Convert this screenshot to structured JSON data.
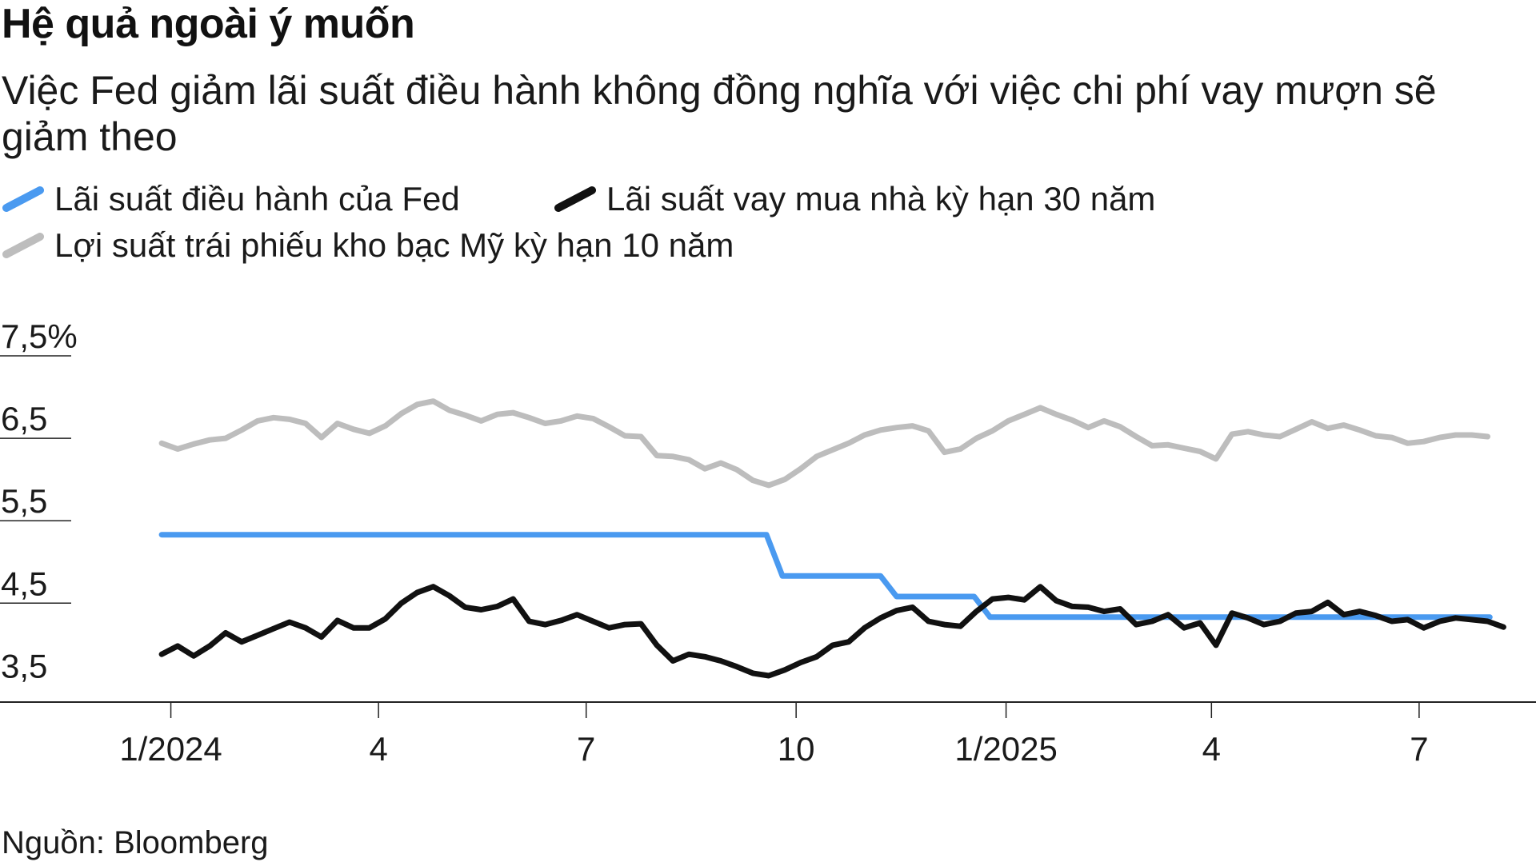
{
  "title": "Hệ quả ngoài ý muốn",
  "subtitle": "Việc Fed giảm lãi suất điều hành không đồng nghĩa với việc chi phí vay mượn sẽ giảm theo",
  "source": "Nguồn: Bloomberg",
  "legend": [
    {
      "label": "Lãi suất điều hành của Fed",
      "color": "#4a9af0"
    },
    {
      "label": "Lãi suất vay mua nhà kỳ hạn 30 năm",
      "color": "#111111"
    },
    {
      "label": "Lợi suất trái phiếu kho bạc Mỹ kỳ hạn 10 năm",
      "color": "#bdbdbd"
    }
  ],
  "chart_data": {
    "type": "line",
    "xlabel": "",
    "ylabel": "",
    "ylim": [
      3.3,
      7.5
    ],
    "xlim": [
      "2023-12-29",
      "2025-08-10"
    ],
    "grid": false,
    "legend_position": "top-left",
    "y_ticks": [
      {
        "value": 7.5,
        "label": "7,5%"
      },
      {
        "value": 6.5,
        "label": "6,5"
      },
      {
        "value": 5.5,
        "label": "5,5"
      },
      {
        "value": 4.5,
        "label": "4,5"
      },
      {
        "value": 3.5,
        "label": "3,5"
      }
    ],
    "x_ticks": [
      {
        "value": "2024-01-01",
        "label": "1/2024"
      },
      {
        "value": "2024-04-01",
        "label": "4"
      },
      {
        "value": "2024-07-01",
        "label": "7"
      },
      {
        "value": "2024-10-01",
        "label": "10"
      },
      {
        "value": "2025-01-01",
        "label": "1/2025"
      },
      {
        "value": "2025-04-01",
        "label": "4"
      },
      {
        "value": "2025-07-01",
        "label": "7"
      }
    ],
    "series": [
      {
        "name": "Lãi suất điều hành của Fed",
        "color": "#4a9af0",
        "points": [
          [
            "2023-12-28",
            5.33
          ],
          [
            "2024-09-18",
            5.33
          ],
          [
            "2024-09-25",
            4.83
          ],
          [
            "2024-11-07",
            4.83
          ],
          [
            "2024-11-14",
            4.58
          ],
          [
            "2024-12-18",
            4.58
          ],
          [
            "2024-12-25",
            4.33
          ],
          [
            "2025-08-01",
            4.33
          ]
        ]
      },
      {
        "name": "Lãi suất vay mua nhà kỳ hạn 30 năm",
        "color": "#111111",
        "points": [
          [
            "2023-12-28",
            3.88
          ],
          [
            "2024-01-04",
            3.98
          ],
          [
            "2024-01-11",
            3.86
          ],
          [
            "2024-01-18",
            3.98
          ],
          [
            "2024-01-25",
            4.14
          ],
          [
            "2024-02-01",
            4.03
          ],
          [
            "2024-02-08",
            4.11
          ],
          [
            "2024-02-15",
            4.19
          ],
          [
            "2024-02-22",
            4.27
          ],
          [
            "2024-02-29",
            4.2
          ],
          [
            "2024-03-07",
            4.09
          ],
          [
            "2024-03-14",
            4.29
          ],
          [
            "2024-03-21",
            4.2
          ],
          [
            "2024-03-28",
            4.2
          ],
          [
            "2024-04-04",
            4.31
          ],
          [
            "2024-04-11",
            4.5
          ],
          [
            "2024-04-18",
            4.63
          ],
          [
            "2024-04-25",
            4.7
          ],
          [
            "2024-05-02",
            4.59
          ],
          [
            "2024-05-09",
            4.45
          ],
          [
            "2024-05-16",
            4.42
          ],
          [
            "2024-05-23",
            4.46
          ],
          [
            "2024-05-30",
            4.55
          ],
          [
            "2024-06-06",
            4.28
          ],
          [
            "2024-06-13",
            4.24
          ],
          [
            "2024-06-20",
            4.29
          ],
          [
            "2024-06-27",
            4.36
          ],
          [
            "2024-07-04",
            4.28
          ],
          [
            "2024-07-11",
            4.2
          ],
          [
            "2024-07-18",
            4.24
          ],
          [
            "2024-07-25",
            4.25
          ],
          [
            "2024-08-01",
            3.99
          ],
          [
            "2024-08-08",
            3.8
          ],
          [
            "2024-08-15",
            3.88
          ],
          [
            "2024-08-22",
            3.85
          ],
          [
            "2024-08-29",
            3.8
          ],
          [
            "2024-09-05",
            3.73
          ],
          [
            "2024-09-12",
            3.65
          ],
          [
            "2024-09-19",
            3.62
          ],
          [
            "2024-09-26",
            3.69
          ],
          [
            "2024-10-03",
            3.78
          ],
          [
            "2024-10-10",
            3.85
          ],
          [
            "2024-10-17",
            3.99
          ],
          [
            "2024-10-24",
            4.03
          ],
          [
            "2024-10-31",
            4.2
          ],
          [
            "2024-11-07",
            4.32
          ],
          [
            "2024-11-14",
            4.41
          ],
          [
            "2024-11-21",
            4.45
          ],
          [
            "2024-11-28",
            4.28
          ],
          [
            "2024-12-05",
            4.24
          ],
          [
            "2024-12-12",
            4.22
          ],
          [
            "2024-12-19",
            4.4
          ],
          [
            "2024-12-26",
            4.55
          ],
          [
            "2025-01-02",
            4.57
          ],
          [
            "2025-01-09",
            4.54
          ],
          [
            "2025-01-16",
            4.7
          ],
          [
            "2025-01-23",
            4.53
          ],
          [
            "2025-01-30",
            4.46
          ],
          [
            "2025-02-06",
            4.45
          ],
          [
            "2025-02-13",
            4.4
          ],
          [
            "2025-02-20",
            4.43
          ],
          [
            "2025-02-27",
            4.24
          ],
          [
            "2025-03-06",
            4.28
          ],
          [
            "2025-03-13",
            4.36
          ],
          [
            "2025-03-20",
            4.2
          ],
          [
            "2025-03-27",
            4.26
          ],
          [
            "2025-04-03",
            3.99
          ],
          [
            "2025-04-10",
            4.38
          ],
          [
            "2025-04-17",
            4.32
          ],
          [
            "2025-04-24",
            4.24
          ],
          [
            "2025-05-01",
            4.28
          ],
          [
            "2025-05-08",
            4.38
          ],
          [
            "2025-05-15",
            4.4
          ],
          [
            "2025-05-22",
            4.51
          ],
          [
            "2025-05-29",
            4.36
          ],
          [
            "2025-06-05",
            4.4
          ],
          [
            "2025-06-12",
            4.35
          ],
          [
            "2025-06-19",
            4.28
          ],
          [
            "2025-06-26",
            4.3
          ],
          [
            "2025-07-03",
            4.2
          ],
          [
            "2025-07-10",
            4.28
          ],
          [
            "2025-07-17",
            4.32
          ],
          [
            "2025-07-24",
            4.3
          ],
          [
            "2025-07-31",
            4.28
          ],
          [
            "2025-08-07",
            4.21
          ]
        ]
      },
      {
        "name": "Lợi suất trái phiếu kho bạc Mỹ kỳ hạn 10 năm",
        "color": "#bdbdbd",
        "points": [
          [
            "2023-12-28",
            6.44
          ],
          [
            "2024-01-04",
            6.37
          ],
          [
            "2024-01-11",
            6.43
          ],
          [
            "2024-01-18",
            6.48
          ],
          [
            "2024-01-25",
            6.5
          ],
          [
            "2024-02-01",
            6.6
          ],
          [
            "2024-02-08",
            6.71
          ],
          [
            "2024-02-15",
            6.75
          ],
          [
            "2024-02-22",
            6.73
          ],
          [
            "2024-02-29",
            6.68
          ],
          [
            "2024-03-07",
            6.51
          ],
          [
            "2024-03-14",
            6.68
          ],
          [
            "2024-03-21",
            6.61
          ],
          [
            "2024-03-28",
            6.56
          ],
          [
            "2024-04-04",
            6.65
          ],
          [
            "2024-04-11",
            6.8
          ],
          [
            "2024-04-18",
            6.91
          ],
          [
            "2024-04-25",
            6.95
          ],
          [
            "2024-05-02",
            6.84
          ],
          [
            "2024-05-09",
            6.78
          ],
          [
            "2024-05-16",
            6.71
          ],
          [
            "2024-05-23",
            6.79
          ],
          [
            "2024-05-30",
            6.81
          ],
          [
            "2024-06-06",
            6.75
          ],
          [
            "2024-06-13",
            6.68
          ],
          [
            "2024-06-20",
            6.71
          ],
          [
            "2024-06-27",
            6.77
          ],
          [
            "2024-07-04",
            6.74
          ],
          [
            "2024-07-11",
            6.64
          ],
          [
            "2024-07-18",
            6.53
          ],
          [
            "2024-07-25",
            6.52
          ],
          [
            "2024-08-01",
            6.29
          ],
          [
            "2024-08-08",
            6.28
          ],
          [
            "2024-08-15",
            6.24
          ],
          [
            "2024-08-22",
            6.13
          ],
          [
            "2024-08-29",
            6.2
          ],
          [
            "2024-09-05",
            6.12
          ],
          [
            "2024-09-12",
            5.99
          ],
          [
            "2024-09-19",
            5.93
          ],
          [
            "2024-09-26",
            6.0
          ],
          [
            "2024-10-03",
            6.13
          ],
          [
            "2024-10-10",
            6.28
          ],
          [
            "2024-10-17",
            6.36
          ],
          [
            "2024-10-24",
            6.44
          ],
          [
            "2024-10-31",
            6.54
          ],
          [
            "2024-11-07",
            6.6
          ],
          [
            "2024-11-14",
            6.63
          ],
          [
            "2024-11-21",
            6.65
          ],
          [
            "2024-11-28",
            6.59
          ],
          [
            "2024-12-05",
            6.33
          ],
          [
            "2024-12-12",
            6.37
          ],
          [
            "2024-12-19",
            6.5
          ],
          [
            "2024-12-26",
            6.59
          ],
          [
            "2025-01-02",
            6.71
          ],
          [
            "2025-01-09",
            6.79
          ],
          [
            "2025-01-16",
            6.87
          ],
          [
            "2025-01-23",
            6.79
          ],
          [
            "2025-01-30",
            6.72
          ],
          [
            "2025-02-06",
            6.63
          ],
          [
            "2025-02-13",
            6.71
          ],
          [
            "2025-02-20",
            6.64
          ],
          [
            "2025-02-27",
            6.52
          ],
          [
            "2025-03-06",
            6.41
          ],
          [
            "2025-03-13",
            6.42
          ],
          [
            "2025-03-20",
            6.38
          ],
          [
            "2025-03-27",
            6.34
          ],
          [
            "2025-04-03",
            6.25
          ],
          [
            "2025-04-10",
            6.55
          ],
          [
            "2025-04-17",
            6.58
          ],
          [
            "2025-04-24",
            6.54
          ],
          [
            "2025-05-01",
            6.52
          ],
          [
            "2025-05-08",
            6.61
          ],
          [
            "2025-05-15",
            6.7
          ],
          [
            "2025-05-22",
            6.62
          ],
          [
            "2025-05-29",
            6.66
          ],
          [
            "2025-06-05",
            6.6
          ],
          [
            "2025-06-12",
            6.53
          ],
          [
            "2025-06-19",
            6.51
          ],
          [
            "2025-06-26",
            6.44
          ],
          [
            "2025-07-03",
            6.46
          ],
          [
            "2025-07-10",
            6.51
          ],
          [
            "2025-07-17",
            6.54
          ],
          [
            "2025-07-24",
            6.54
          ],
          [
            "2025-07-31",
            6.52
          ]
        ]
      }
    ]
  }
}
